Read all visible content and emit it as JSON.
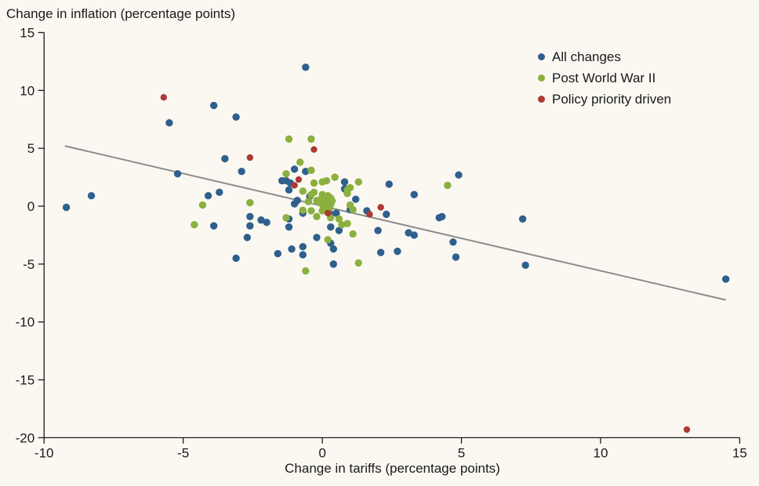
{
  "colors": {
    "background": "#fbf8f2",
    "axis": "#1a1a1a",
    "text": "#1a1a1a",
    "trend_line": "#8c8c8c",
    "blue": "#2f608d",
    "green": "#8bb03f",
    "red": "#ac3a32"
  },
  "chart_data": {
    "type": "scatter",
    "y_axis_title": "Change in inflation (percentage points)",
    "xlabel": "Change in tariffs (percentage points)",
    "xlim": [
      -10,
      15
    ],
    "ylim": [
      -20,
      15
    ],
    "xticks": [
      -10,
      -5,
      0,
      5,
      10,
      15
    ],
    "yticks": [
      15,
      10,
      5,
      0,
      -5,
      -10,
      -15,
      -20
    ],
    "grid": false,
    "legend_position": "top-right",
    "trend_line": {
      "color": "#8c8c8c",
      "from": [
        -9.25,
        5.2
      ],
      "to": [
        14.5,
        -8.1
      ]
    },
    "series": [
      {
        "name": "All changes",
        "color": "#2f608d",
        "points": [
          [
            -9.2,
            -0.1
          ],
          [
            -8.3,
            0.9
          ],
          [
            -5.5,
            7.2
          ],
          [
            -5.2,
            2.8
          ],
          [
            -4.1,
            0.9
          ],
          [
            -3.9,
            8.7
          ],
          [
            -3.7,
            1.2
          ],
          [
            -3.9,
            -1.7
          ],
          [
            -3.5,
            4.1
          ],
          [
            -3.1,
            7.7
          ],
          [
            -2.9,
            3.0
          ],
          [
            -3.1,
            -4.5
          ],
          [
            -2.7,
            -2.7
          ],
          [
            -2.6,
            -0.9
          ],
          [
            -2.6,
            -1.7
          ],
          [
            -2.2,
            -1.2
          ],
          [
            -2.0,
            -1.4
          ],
          [
            -1.6,
            -4.1
          ],
          [
            -1.45,
            2.2
          ],
          [
            -1.3,
            2.2
          ],
          [
            -1.15,
            2.0
          ],
          [
            -1.2,
            1.4
          ],
          [
            -1.2,
            -1.1
          ],
          [
            -1.2,
            -1.8
          ],
          [
            -1.1,
            -3.7
          ],
          [
            -1.0,
            3.2
          ],
          [
            -1.0,
            0.2
          ],
          [
            -0.9,
            0.5
          ],
          [
            -0.7,
            -0.6
          ],
          [
            -0.7,
            -3.5
          ],
          [
            -0.7,
            -4.2
          ],
          [
            -0.6,
            12.0
          ],
          [
            -0.6,
            3.0
          ],
          [
            -0.45,
            0.85
          ],
          [
            -0.2,
            -2.7
          ],
          [
            0.3,
            -0.7
          ],
          [
            0.3,
            -1.8
          ],
          [
            0.3,
            -3.2
          ],
          [
            0.4,
            -3.7
          ],
          [
            0.4,
            -5.0
          ],
          [
            0.5,
            -0.6
          ],
          [
            0.6,
            -2.1
          ],
          [
            0.8,
            2.1
          ],
          [
            0.8,
            1.5
          ],
          [
            1.0,
            -0.3
          ],
          [
            1.2,
            0.6
          ],
          [
            1.6,
            -0.4
          ],
          [
            2.0,
            -2.1
          ],
          [
            2.1,
            -4.0
          ],
          [
            2.3,
            -0.7
          ],
          [
            2.4,
            1.9
          ],
          [
            2.7,
            -3.9
          ],
          [
            3.1,
            -2.3
          ],
          [
            3.3,
            1.0
          ],
          [
            3.3,
            -2.5
          ],
          [
            4.2,
            -1.0
          ],
          [
            4.3,
            -0.9
          ],
          [
            4.7,
            -3.1
          ],
          [
            4.8,
            -4.4
          ],
          [
            4.9,
            2.7
          ],
          [
            7.2,
            -1.1
          ],
          [
            7.3,
            -5.1
          ],
          [
            14.5,
            -6.3
          ]
        ]
      },
      {
        "name": "Post World War II",
        "color": "#8bb03f",
        "points": [
          [
            -4.6,
            -1.6
          ],
          [
            -4.3,
            0.1
          ],
          [
            -2.6,
            0.3
          ],
          [
            -1.3,
            2.8
          ],
          [
            -1.3,
            -1.0
          ],
          [
            -1.2,
            5.8
          ],
          [
            -0.8,
            3.8
          ],
          [
            -0.7,
            1.3
          ],
          [
            -0.7,
            -0.35
          ],
          [
            -0.6,
            -5.6
          ],
          [
            -0.5,
            0.4
          ],
          [
            -0.4,
            5.8
          ],
          [
            -0.4,
            3.1
          ],
          [
            -0.4,
            1.0
          ],
          [
            -0.3,
            2.0
          ],
          [
            -0.3,
            1.2
          ],
          [
            -0.4,
            -0.4
          ],
          [
            -0.2,
            0.5
          ],
          [
            -0.2,
            -0.9
          ],
          [
            0.0,
            2.1
          ],
          [
            0.15,
            2.2
          ],
          [
            0.45,
            2.5
          ],
          [
            0.0,
            -0.4
          ],
          [
            0.2,
            -2.9
          ],
          [
            0.3,
            -1.0
          ],
          [
            0.6,
            -1.1
          ],
          [
            0.7,
            -1.6
          ],
          [
            0.9,
            1.4
          ],
          [
            0.9,
            1.1
          ],
          [
            1.0,
            1.6
          ],
          [
            1.0,
            0.1
          ],
          [
            1.1,
            -0.3
          ],
          [
            0.9,
            -1.5
          ],
          [
            1.1,
            -2.4
          ],
          [
            1.3,
            2.1
          ],
          [
            1.3,
            -4.9
          ],
          [
            4.5,
            1.8
          ],
          [
            0.0,
            1.0
          ],
          [
            0.1,
            0.75
          ],
          [
            0.2,
            0.9
          ],
          [
            0.3,
            0.7
          ],
          [
            0.1,
            0.45
          ],
          [
            0.2,
            0.3
          ],
          [
            0.35,
            0.45
          ],
          [
            0.0,
            0.15
          ],
          [
            0.1,
            -0.1
          ],
          [
            0.25,
            0.0
          ],
          [
            0.15,
            0.6
          ],
          [
            0.05,
            0.3
          ],
          [
            0.3,
            0.15
          ],
          [
            -0.05,
            0.6
          ],
          [
            0.2,
            0.6
          ],
          [
            0.15,
            0.15
          ],
          [
            0.25,
            -0.2
          ],
          [
            -0.1,
            0.3
          ]
        ]
      },
      {
        "name": "Policy priority driven",
        "color": "#ac3a32",
        "points": [
          [
            -5.7,
            9.4
          ],
          [
            -2.6,
            4.2
          ],
          [
            -1.0,
            1.8
          ],
          [
            -0.85,
            2.3
          ],
          [
            -0.3,
            4.9
          ],
          [
            0.2,
            -0.6
          ],
          [
            1.7,
            -0.7
          ],
          [
            2.1,
            -0.1
          ],
          [
            13.1,
            -19.3
          ]
        ]
      }
    ]
  }
}
